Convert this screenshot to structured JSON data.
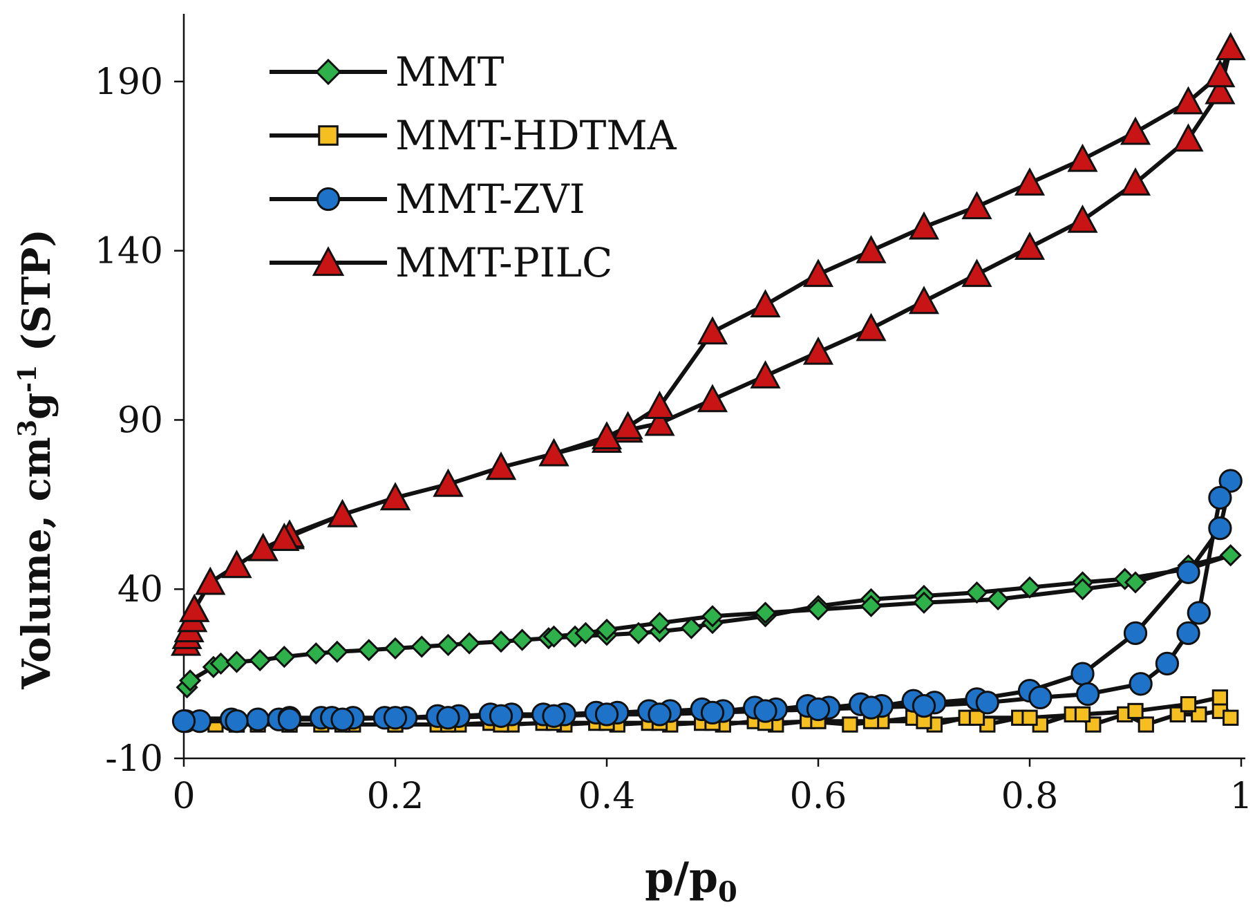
{
  "chart_data": {
    "type": "line",
    "xlabel": "p/p",
    "xlabel_subscript": "0",
    "ylabel_prefix": "Volume, cm",
    "ylabel_sup1": "3",
    "ylabel_mid": "g",
    "ylabel_sup2": "-1",
    "ylabel_suffix": " (STP)",
    "xlim": [
      0,
      1
    ],
    "ylim": [
      -10,
      210
    ],
    "x_ticks": [
      0,
      0.2,
      0.4,
      0.6,
      0.8,
      1
    ],
    "x_tick_labels": [
      "0",
      "0.2",
      "0.4",
      "0.6",
      "0.8",
      "1"
    ],
    "y_ticks": [
      -10,
      40,
      90,
      140,
      190
    ],
    "y_tick_labels": [
      "-10",
      "40",
      "90",
      "140",
      "190"
    ],
    "grid": false,
    "legend_position": "top-left",
    "series": [
      {
        "name": "MMT",
        "marker": "diamond",
        "color": "#2eb04b",
        "x": [
          0.003,
          0.006,
          0.028,
          0.035,
          0.05,
          0.072,
          0.095,
          0.125,
          0.145,
          0.175,
          0.2,
          0.225,
          0.25,
          0.27,
          0.3,
          0.32,
          0.345,
          0.37,
          0.4,
          0.43,
          0.45,
          0.48,
          0.5,
          0.55,
          0.6,
          0.65,
          0.7,
          0.75,
          0.8,
          0.85,
          0.89,
          0.95,
          0.99,
          0.95,
          0.9,
          0.85,
          0.77,
          0.7,
          0.65,
          0.6,
          0.55,
          0.5,
          0.45,
          0.4,
          0.38,
          0.35
        ],
        "y": [
          11,
          13,
          17,
          18,
          18.5,
          19,
          20,
          21,
          21.5,
          22,
          22.5,
          23,
          23.5,
          24,
          24.5,
          25,
          25.5,
          26,
          26.5,
          27,
          27.5,
          28.5,
          30,
          32,
          35,
          37,
          38,
          39,
          40.5,
          42,
          43,
          46,
          50,
          47,
          42,
          40,
          37,
          36,
          35,
          34,
          33,
          32,
          30,
          28,
          27,
          26
        ]
      },
      {
        "name": "MMT-HDTMA",
        "marker": "square",
        "color": "#f5bf21",
        "x": [
          0.03,
          0.05,
          0.07,
          0.1,
          0.13,
          0.16,
          0.2,
          0.24,
          0.26,
          0.29,
          0.31,
          0.34,
          0.36,
          0.39,
          0.41,
          0.44,
          0.46,
          0.49,
          0.51,
          0.54,
          0.56,
          0.59,
          0.63,
          0.66,
          0.69,
          0.71,
          0.74,
          0.76,
          0.79,
          0.81,
          0.84,
          0.86,
          0.89,
          0.91,
          0.94,
          0.96,
          0.98,
          0.99,
          0.98,
          0.95,
          0.9,
          0.85,
          0.8,
          0.75,
          0.7,
          0.65,
          0.6,
          0.55,
          0.5,
          0.45,
          0.4,
          0.35,
          0.3,
          0.25,
          0.2,
          0.15,
          0.1,
          0.05
        ],
        "y": [
          0,
          0,
          0,
          0,
          0,
          0,
          0,
          0,
          0,
          0.5,
          0,
          0.5,
          0,
          0.5,
          0,
          0.5,
          0,
          0.5,
          0,
          1,
          0,
          1,
          0,
          1,
          2,
          0,
          2,
          0,
          2,
          0,
          3,
          0,
          3,
          0,
          3,
          3,
          4,
          2,
          8,
          6,
          4,
          3,
          2,
          2,
          1,
          1,
          1,
          0.5,
          0.5,
          0.5,
          0.5,
          0.5,
          0,
          0,
          0,
          0,
          0,
          0
        ]
      },
      {
        "name": "MMT-ZVI",
        "marker": "circle",
        "color": "#1e72c8",
        "x": [
          0.002,
          0.015,
          0.045,
          0.07,
          0.09,
          0.1,
          0.13,
          0.14,
          0.16,
          0.19,
          0.21,
          0.24,
          0.26,
          0.29,
          0.31,
          0.34,
          0.36,
          0.39,
          0.41,
          0.44,
          0.46,
          0.49,
          0.51,
          0.54,
          0.56,
          0.59,
          0.61,
          0.64,
          0.66,
          0.69,
          0.71,
          0.75,
          0.8,
          0.85,
          0.9,
          0.95,
          0.98,
          0.99,
          0.98,
          0.96,
          0.95,
          0.93,
          0.905,
          0.855,
          0.81,
          0.76,
          0.7,
          0.65,
          0.6,
          0.55,
          0.5,
          0.45,
          0.4,
          0.35,
          0.3,
          0.25,
          0.2,
          0.15,
          0.1,
          0.05,
          0
        ],
        "y": [
          1,
          1,
          1.5,
          1.5,
          1.5,
          2,
          2,
          2,
          2,
          2,
          2,
          2.5,
          2.5,
          3,
          3,
          3,
          3,
          3.5,
          3.5,
          4,
          4,
          4.5,
          4,
          5,
          4.5,
          5.5,
          5,
          6,
          5.5,
          7,
          6.5,
          7.5,
          10,
          15,
          27,
          45,
          58,
          72,
          67,
          33,
          27,
          18,
          12,
          9,
          8,
          6.5,
          5.5,
          5,
          4.5,
          4,
          3.5,
          3,
          3,
          2.5,
          2.5,
          2,
          2,
          1.5,
          1.5,
          1,
          1
        ]
      },
      {
        "name": "MMT-PILC",
        "marker": "triangle",
        "color": "#c81414",
        "x": [
          0.002,
          0.003,
          0.005,
          0.008,
          0.01,
          0.025,
          0.05,
          0.075,
          0.095,
          0.1,
          0.15,
          0.2,
          0.25,
          0.3,
          0.35,
          0.4,
          0.42,
          0.45,
          0.5,
          0.55,
          0.6,
          0.65,
          0.7,
          0.75,
          0.8,
          0.85,
          0.9,
          0.95,
          0.98,
          0.99,
          0.98,
          0.95,
          0.9,
          0.85,
          0.8,
          0.75,
          0.7,
          0.65,
          0.6,
          0.55,
          0.5,
          0.45,
          0.42,
          0.4,
          0.35,
          0.3,
          0.25,
          0.2,
          0.15,
          0.1,
          0.095,
          0.075,
          0.05,
          0.025,
          0.01
        ],
        "y": [
          24,
          26,
          28,
          31,
          34,
          42,
          47,
          52,
          55,
          55.5,
          62,
          67,
          71,
          76,
          80,
          84,
          87,
          89,
          96,
          103,
          110,
          117,
          125,
          133,
          141,
          149,
          160,
          173,
          187,
          200,
          192,
          184,
          175,
          167,
          160,
          153,
          147,
          140,
          133,
          124,
          116,
          94,
          88,
          85,
          80,
          76,
          71,
          67,
          62,
          56,
          55,
          52,
          47,
          42,
          34
        ]
      }
    ]
  }
}
